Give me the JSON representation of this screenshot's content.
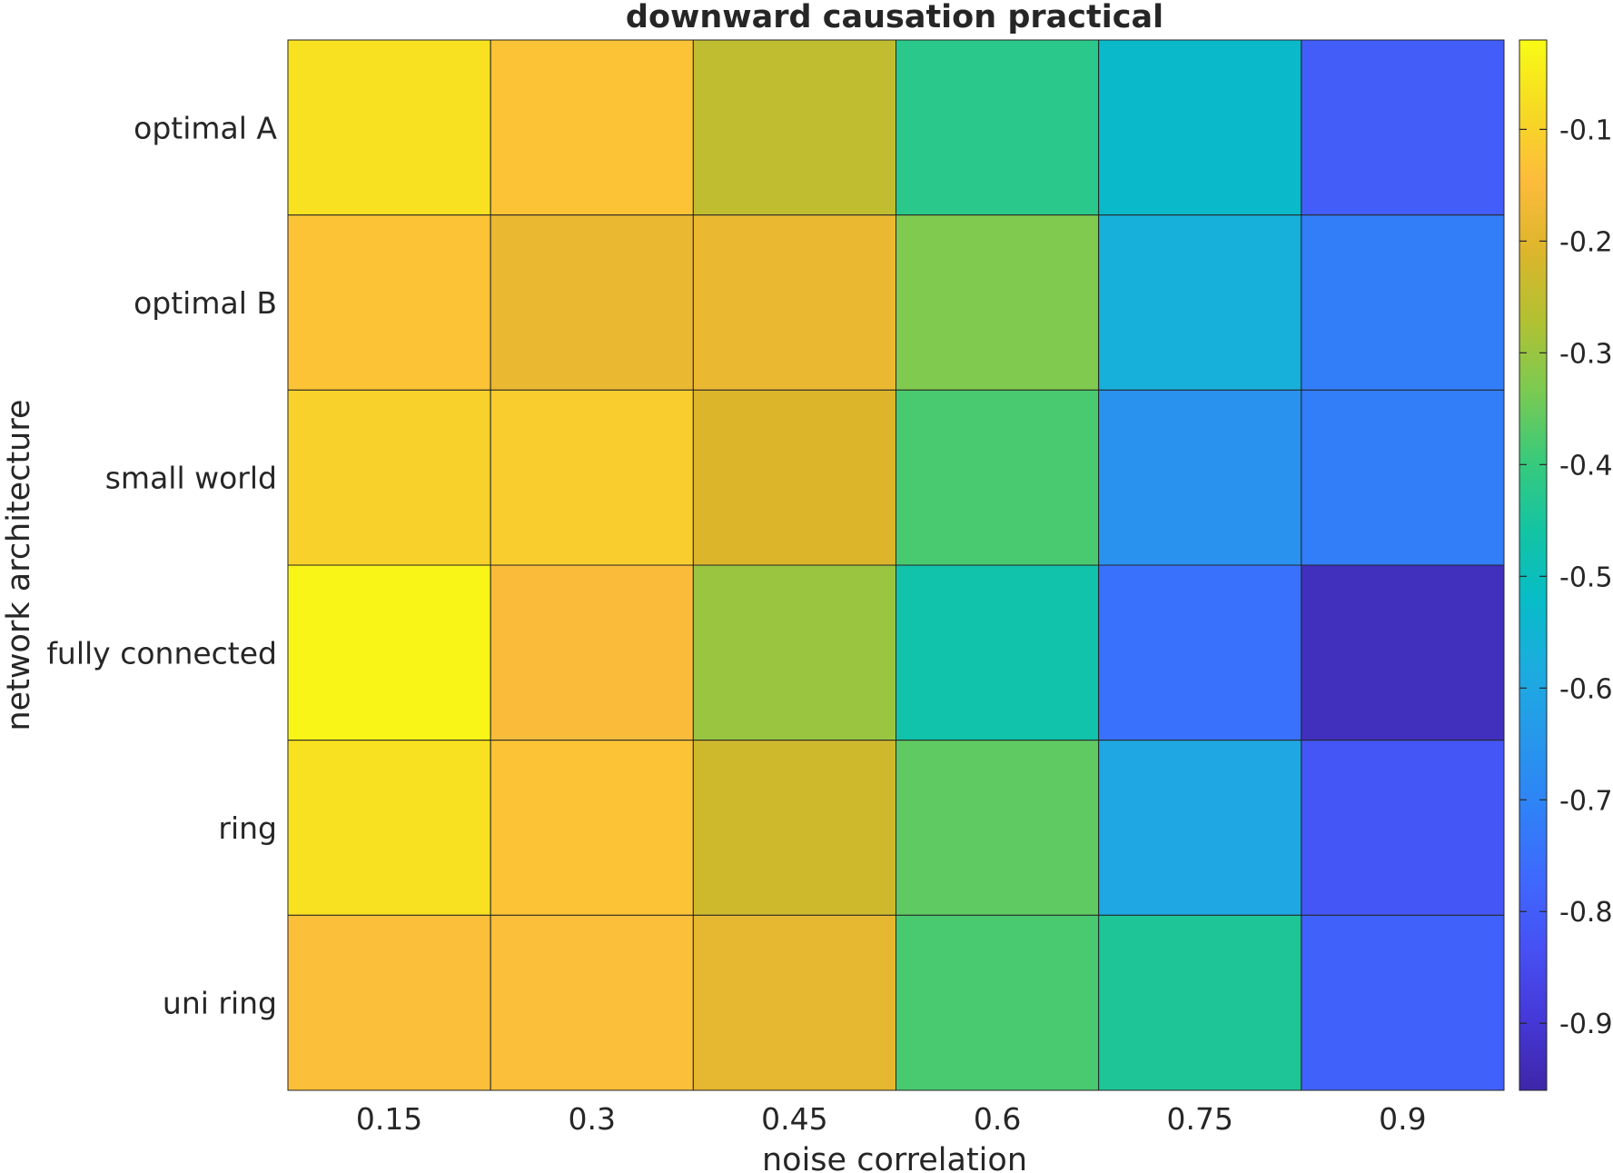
{
  "chart_data": {
    "type": "heatmap",
    "title": "downward causation practical",
    "xlabel": "noise correlation",
    "ylabel": "network architecture",
    "x_categories": [
      "0.15",
      "0.3",
      "0.45",
      "0.6",
      "0.75",
      "0.9"
    ],
    "y_categories": [
      "optimal A",
      "optimal B",
      "small world",
      "fully connected",
      "ring",
      "uni ring"
    ],
    "values": [
      [
        -0.07,
        -0.13,
        -0.25,
        -0.42,
        -0.53,
        -0.8
      ],
      [
        -0.13,
        -0.18,
        -0.18,
        -0.33,
        -0.57,
        -0.72
      ],
      [
        -0.1,
        -0.11,
        -0.21,
        -0.38,
        -0.66,
        -0.72
      ],
      [
        -0.03,
        -0.15,
        -0.3,
        -0.47,
        -0.75,
        -0.93
      ],
      [
        -0.07,
        -0.13,
        -0.23,
        -0.36,
        -0.6,
        -0.82
      ],
      [
        -0.14,
        -0.14,
        -0.19,
        -0.38,
        -0.44,
        -0.79
      ]
    ],
    "colorbar": {
      "min": -0.96,
      "max": -0.02,
      "ticks": [
        -0.1,
        -0.2,
        -0.3,
        -0.4,
        -0.5,
        -0.6,
        -0.7,
        -0.8,
        -0.9
      ],
      "tick_labels": [
        "-0.1",
        "-0.2",
        "-0.3",
        "-0.4",
        "-0.5",
        "-0.6",
        "-0.7",
        "-0.8",
        "-0.9"
      ]
    },
    "colormap": [
      "#3e26a8",
      "#4538d7",
      "#4750f3",
      "#3f68fe",
      "#2f81f7",
      "#2797eb",
      "#1cace0",
      "#07bcc7",
      "#13c4a3",
      "#39ca7a",
      "#7cca51",
      "#b2c132",
      "#ddb52b",
      "#fdbc3b",
      "#f6da23",
      "#f9fb15"
    ],
    "grid": false
  }
}
